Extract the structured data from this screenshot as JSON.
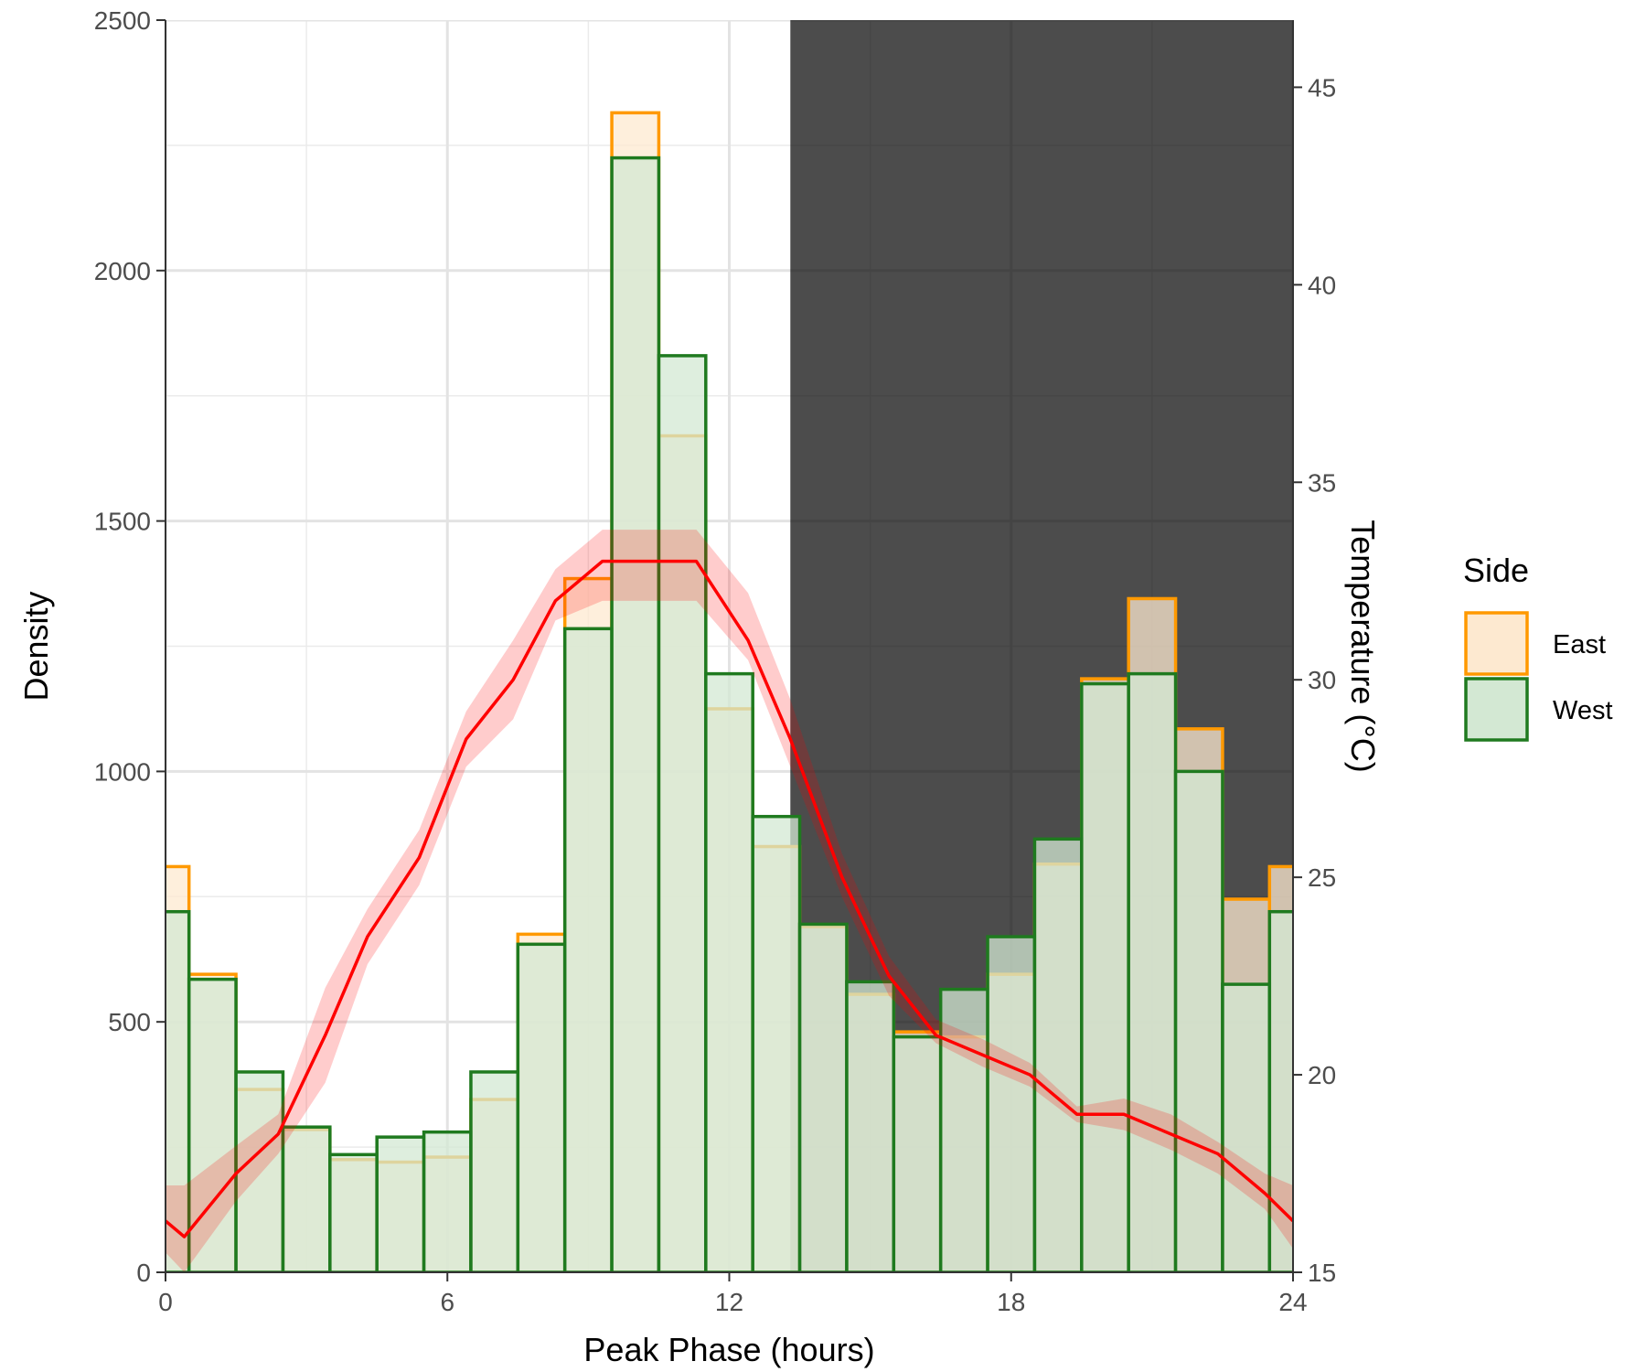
{
  "chart_data": {
    "type": "bar",
    "xlabel": "Peak Phase (hours)",
    "ylabel": "Density",
    "y2label": "Temperature (°C)",
    "xlim": [
      0,
      24
    ],
    "ylim": [
      0,
      2500
    ],
    "y2lim": [
      15,
      46.7
    ],
    "x_ticks": [
      0,
      6,
      12,
      18,
      24
    ],
    "y_ticks": [
      0,
      500,
      1000,
      1500,
      2000,
      2500
    ],
    "y2_ticks": [
      15,
      20,
      25,
      30,
      35,
      40,
      45
    ],
    "grid": true,
    "dark_period": {
      "start": 13.3,
      "end": 24
    },
    "bin_width": 1,
    "bin_centers": [
      0,
      1,
      2,
      3,
      4,
      5,
      6,
      7,
      8,
      9,
      10,
      11,
      12,
      13,
      14,
      15,
      16,
      17,
      18,
      19,
      20,
      21,
      22,
      23,
      24
    ],
    "legend": {
      "title": "Side",
      "position": "right"
    },
    "series": [
      {
        "name": "East",
        "color": "#ff9900",
        "fill": "#fde9d0",
        "values": [
          810,
          595,
          365,
          285,
          225,
          220,
          230,
          345,
          675,
          1385,
          2315,
          1670,
          1125,
          850,
          690,
          555,
          480,
          470,
          595,
          815,
          1185,
          1345,
          1085,
          745,
          810
        ]
      },
      {
        "name": "West",
        "color": "#1f7a1f",
        "fill": "#d3e8d3",
        "values": [
          720,
          585,
          400,
          290,
          235,
          270,
          280,
          400,
          655,
          1285,
          2225,
          1830,
          1195,
          910,
          695,
          580,
          470,
          565,
          670,
          865,
          1175,
          1195,
          1000,
          575,
          720
        ]
      }
    ],
    "temperature": {
      "color": "#ff0000",
      "x": [
        0,
        0.4,
        1.5,
        2.4,
        3.4,
        4.3,
        5.4,
        6.4,
        7.4,
        8.3,
        9.3,
        10.3,
        11.3,
        12.4,
        13.3,
        14.4,
        15.4,
        16.4,
        17.4,
        18.4,
        19.4,
        20.4,
        21.4,
        22.4,
        23.4,
        24
      ],
      "y": [
        16.3,
        15.9,
        17.5,
        18.5,
        21.0,
        23.5,
        25.5,
        28.5,
        30.0,
        32.0,
        33.0,
        33.0,
        33.0,
        31.0,
        28.5,
        25.0,
        22.5,
        21.0,
        20.5,
        20.0,
        19.0,
        19.0,
        18.5,
        18.0,
        17.0,
        16.3
      ],
      "lower": [
        15.5,
        15.0,
        16.8,
        18.0,
        19.8,
        22.8,
        24.8,
        27.8,
        29.0,
        31.5,
        32.0,
        32.0,
        32.0,
        30.5,
        27.8,
        24.5,
        22.0,
        20.8,
        20.2,
        19.7,
        18.8,
        18.6,
        18.1,
        17.5,
        16.6,
        15.6
      ],
      "upper": [
        17.2,
        17.2,
        18.2,
        19.0,
        22.2,
        24.2,
        26.2,
        29.2,
        31.0,
        32.8,
        33.8,
        33.8,
        33.8,
        32.2,
        29.5,
        25.6,
        23.0,
        21.4,
        20.9,
        20.3,
        19.2,
        19.4,
        19.0,
        18.3,
        17.5,
        17.2
      ]
    }
  }
}
